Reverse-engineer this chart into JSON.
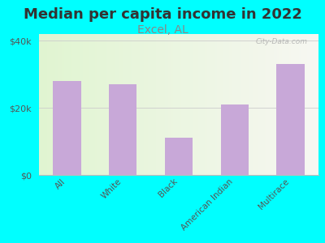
{
  "title": "Median per capita income in 2022",
  "subtitle": "Excel, AL",
  "categories": [
    "All",
    "White",
    "Black",
    "American Indian",
    "Multirace"
  ],
  "values": [
    28000,
    27000,
    11000,
    21000,
    33000
  ],
  "bar_color": "#c8a8d8",
  "background_outer": "#00FFFF",
  "title_color": "#333333",
  "subtitle_color": "#888888",
  "title_fontsize": 13,
  "subtitle_fontsize": 10,
  "ylabel_ticks": [
    "$0",
    "$20k",
    "$40k"
  ],
  "ytick_values": [
    0,
    20000,
    40000
  ],
  "ylim": [
    0,
    42000
  ],
  "watermark": "City-Data.com"
}
